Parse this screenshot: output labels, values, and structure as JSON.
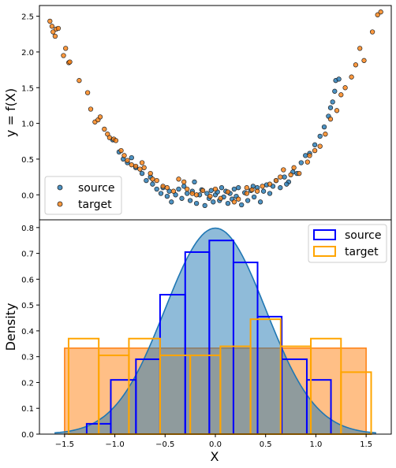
{
  "chart_data": [
    {
      "type": "scatter",
      "ylabel": "y = f(X)",
      "xlim": [
        -1.68,
        1.68
      ],
      "ylim": [
        -0.35,
        2.65
      ],
      "yticks": [
        "0.0",
        "0.5",
        "1.0",
        "1.5",
        "2.0",
        "2.5"
      ],
      "ytick_values": [
        0,
        0.5,
        1.0,
        1.5,
        2.0,
        2.5
      ],
      "legend_position": "lower-left",
      "colors": {
        "source": "#1f77b4",
        "target": "#ff7f0e"
      },
      "series": [
        {
          "name": "source",
          "points": [
            [
              -0.98,
              0.77
            ],
            [
              -0.92,
              0.6
            ],
            [
              -0.88,
              0.5
            ],
            [
              -0.84,
              0.45
            ],
            [
              -0.8,
              0.52
            ],
            [
              -0.76,
              0.38
            ],
            [
              -0.7,
              0.3
            ],
            [
              -0.66,
              0.2
            ],
            [
              -0.6,
              0.15
            ],
            [
              -0.56,
              0.08
            ],
            [
              -0.52,
              0.02
            ],
            [
              -0.5,
              0.1
            ],
            [
              -0.46,
              -0.02
            ],
            [
              -0.44,
              0.05
            ],
            [
              -0.42,
              -0.1
            ],
            [
              -0.38,
              0.0
            ],
            [
              -0.35,
              0.08
            ],
            [
              -0.32,
              -0.05
            ],
            [
              -0.3,
              0.12
            ],
            [
              -0.27,
              0.02
            ],
            [
              -0.24,
              -0.08
            ],
            [
              -0.22,
              0.05
            ],
            [
              -0.2,
              0.18
            ],
            [
              -0.18,
              -0.12
            ],
            [
              -0.15,
              0.0
            ],
            [
              -0.13,
              0.07
            ],
            [
              -0.1,
              -0.15
            ],
            [
              -0.08,
              0.02
            ],
            [
              -0.06,
              -0.05
            ],
            [
              -0.04,
              0.06
            ],
            [
              -0.02,
              -0.1
            ],
            [
              0.0,
              0.0
            ],
            [
              0.02,
              0.04
            ],
            [
              0.04,
              -0.08
            ],
            [
              0.06,
              0.1
            ],
            [
              0.08,
              -0.03
            ],
            [
              0.1,
              0.05
            ],
            [
              0.12,
              -0.12
            ],
            [
              0.14,
              0.02
            ],
            [
              0.16,
              -0.06
            ],
            [
              0.18,
              0.08
            ],
            [
              0.2,
              -0.02
            ],
            [
              0.22,
              0.1
            ],
            [
              0.25,
              -0.14
            ],
            [
              0.28,
              0.03
            ],
            [
              0.31,
              -0.08
            ],
            [
              0.34,
              0.06
            ],
            [
              0.37,
              -0.03
            ],
            [
              0.4,
              0.1
            ],
            [
              0.43,
              -0.1
            ],
            [
              0.46,
              0.05
            ],
            [
              0.49,
              0.14
            ],
            [
              0.52,
              0.02
            ],
            [
              0.55,
              0.12
            ],
            [
              0.58,
              0.2
            ],
            [
              0.62,
              0.1
            ],
            [
              0.66,
              0.25
            ],
            [
              0.7,
              0.18
            ],
            [
              0.74,
              0.32
            ],
            [
              0.78,
              0.3
            ],
            [
              0.82,
              0.45
            ],
            [
              0.86,
              0.55
            ],
            [
              0.9,
              0.58
            ],
            [
              0.95,
              0.7
            ],
            [
              1.0,
              0.82
            ],
            [
              1.04,
              0.95
            ],
            [
              1.08,
              1.1
            ],
            [
              1.1,
              1.22
            ],
            [
              1.12,
              1.3
            ],
            [
              1.14,
              1.45
            ],
            [
              1.15,
              1.6
            ],
            [
              1.18,
              1.62
            ],
            [
              0.36,
              0.12
            ],
            [
              -0.62,
              0.25
            ],
            [
              0.68,
              0.15
            ]
          ]
        },
        {
          "name": "target",
          "points": [
            [
              -1.58,
              2.43
            ],
            [
              -1.56,
              2.36
            ],
            [
              -1.55,
              2.28
            ],
            [
              -1.53,
              2.22
            ],
            [
              -1.52,
              2.32
            ],
            [
              -1.5,
              2.33
            ],
            [
              -1.45,
              1.95
            ],
            [
              -1.43,
              2.05
            ],
            [
              -1.4,
              1.85
            ],
            [
              -1.39,
              1.86
            ],
            [
              -1.3,
              1.6
            ],
            [
              -1.22,
              1.43
            ],
            [
              -1.19,
              1.2
            ],
            [
              -1.15,
              1.02
            ],
            [
              -1.12,
              1.05
            ],
            [
              -1.1,
              1.09
            ],
            [
              -1.06,
              0.92
            ],
            [
              -1.03,
              0.85
            ],
            [
              -1.01,
              0.8
            ],
            [
              -0.97,
              0.78
            ],
            [
              -0.95,
              0.76
            ],
            [
              -0.9,
              0.62
            ],
            [
              -0.87,
              0.55
            ],
            [
              -0.84,
              0.48
            ],
            [
              -0.8,
              0.42
            ],
            [
              -0.76,
              0.4
            ],
            [
              -0.72,
              0.36
            ],
            [
              -0.68,
              0.38
            ],
            [
              -0.62,
              0.3
            ],
            [
              -0.6,
              0.22
            ],
            [
              -0.56,
              0.2
            ],
            [
              -0.5,
              0.12
            ],
            [
              -0.46,
              0.1
            ],
            [
              -0.4,
              0.05
            ],
            [
              -0.35,
              0.22
            ],
            [
              -0.3,
              0.18
            ],
            [
              -0.27,
              0.08
            ],
            [
              -0.22,
              0.02
            ],
            [
              -0.18,
              0.0
            ],
            [
              -0.12,
              0.06
            ],
            [
              -0.05,
              -0.02
            ],
            [
              0.0,
              0.08
            ],
            [
              0.05,
              -0.05
            ],
            [
              0.12,
              0.04
            ],
            [
              0.18,
              -0.1
            ],
            [
              0.22,
              -0.06
            ],
            [
              0.3,
              0.02
            ],
            [
              0.35,
              0.07
            ],
            [
              0.4,
              0.05
            ],
            [
              0.45,
              0.12
            ],
            [
              0.52,
              0.15
            ],
            [
              0.58,
              0.2
            ],
            [
              0.62,
              0.25
            ],
            [
              0.65,
              0.35
            ],
            [
              0.72,
              0.28
            ],
            [
              0.75,
              0.38
            ],
            [
              0.8,
              0.3
            ],
            [
              0.88,
              0.46
            ],
            [
              0.95,
              0.62
            ],
            [
              1.0,
              0.68
            ],
            [
              1.05,
              0.85
            ],
            [
              1.1,
              1.06
            ],
            [
              1.16,
              1.18
            ],
            [
              1.2,
              1.4
            ],
            [
              1.24,
              1.5
            ],
            [
              1.3,
              1.65
            ],
            [
              1.34,
              1.82
            ],
            [
              1.38,
              2.05
            ],
            [
              1.42,
              1.88
            ],
            [
              1.5,
              2.28
            ],
            [
              1.55,
              2.52
            ],
            [
              1.58,
              2.56
            ],
            [
              0.3,
              0.1
            ],
            [
              -0.7,
              0.45
            ],
            [
              0.9,
              0.55
            ]
          ]
        }
      ]
    },
    {
      "type": "bar",
      "subtype": "histogram-with-density",
      "xlabel": "X",
      "ylabel": "Density",
      "xlim": [
        -1.75,
        1.75
      ],
      "ylim": [
        0,
        0.83
      ],
      "xticks": [
        "−1.5",
        "−1.0",
        "−0.5",
        "0.0",
        "0.5",
        "1.0",
        "1.5"
      ],
      "xtick_values": [
        -1.5,
        -1.0,
        -0.5,
        0.0,
        0.5,
        1.0,
        1.5
      ],
      "yticks": [
        "0.0",
        "0.1",
        "0.2",
        "0.3",
        "0.4",
        "0.5",
        "0.6",
        "0.7",
        "0.8"
      ],
      "ytick_values": [
        0,
        0.1,
        0.2,
        0.3,
        0.4,
        0.5,
        0.6,
        0.7,
        0.8
      ],
      "legend_position": "upper-right",
      "colors": {
        "source_edge": "#0000ff",
        "target_edge": "#ffa500",
        "density_fill": "#1f77b4",
        "uniform_fill": "#ff7f0e"
      },
      "series": [
        {
          "name": "source",
          "bin_edges": [
            -1.28,
            -1.04,
            -0.79,
            -0.55,
            -0.3,
            -0.06,
            0.18,
            0.42,
            0.66,
            0.91,
            1.15
          ],
          "values": [
            0.04,
            0.21,
            0.29,
            0.54,
            0.705,
            0.75,
            0.665,
            0.455,
            0.29,
            0.21
          ]
        },
        {
          "name": "target",
          "bin_edges": [
            -1.46,
            -1.16,
            -0.86,
            -0.55,
            -0.25,
            0.05,
            0.35,
            0.65,
            0.95,
            1.25,
            1.55
          ],
          "values": [
            0.37,
            0.305,
            0.37,
            0.305,
            0.305,
            0.34,
            0.445,
            0.34,
            0.37,
            0.24
          ]
        }
      ],
      "normal_density": {
        "mean": 0.0,
        "std": 0.5,
        "x_range": [
          -1.6,
          1.6
        ]
      },
      "uniform_density": {
        "x_range": [
          -1.5,
          1.5
        ],
        "value": 0.333
      }
    }
  ]
}
